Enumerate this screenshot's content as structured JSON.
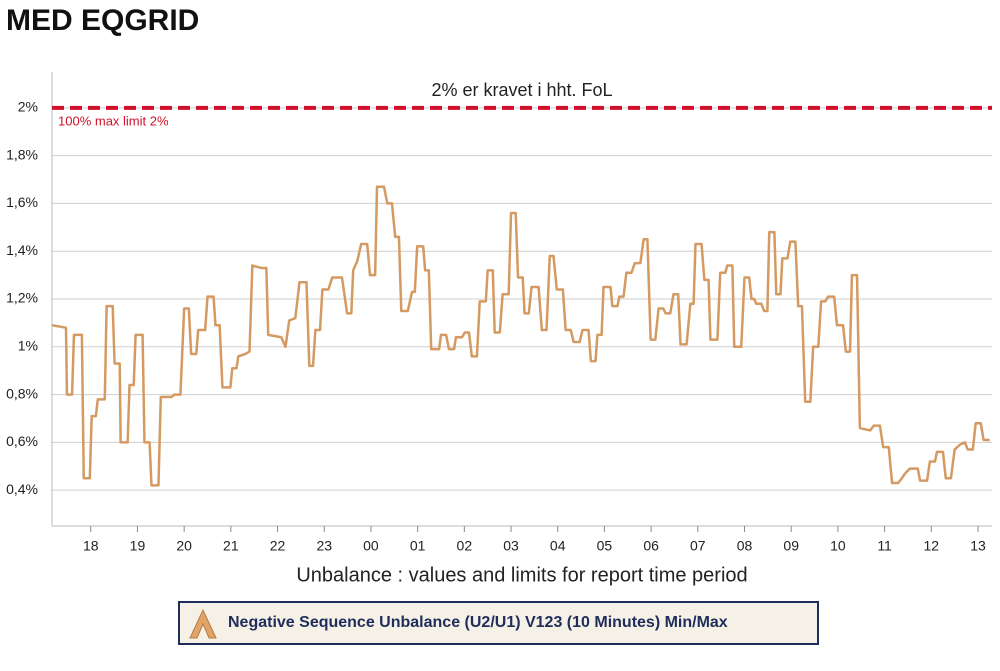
{
  "chart_data": {
    "type": "line",
    "title": "MED EQGRID",
    "x_label": "Unbalance : values and limits for report time period",
    "annotation": "2% er kravet i hht. FoL",
    "limit": {
      "value": 2,
      "label": "100% max limit 2%",
      "color": "#d0112b"
    },
    "grid": true,
    "xlim": [
      -0.83,
      19.3
    ],
    "ylim": [
      0.25,
      2.15
    ],
    "xticks": [
      {
        "value": 0,
        "label": "18"
      },
      {
        "value": 1,
        "label": "19"
      },
      {
        "value": 2,
        "label": "20"
      },
      {
        "value": 3,
        "label": "21"
      },
      {
        "value": 4,
        "label": "22"
      },
      {
        "value": 5,
        "label": "23"
      },
      {
        "value": 6,
        "label": "00"
      },
      {
        "value": 7,
        "label": "01"
      },
      {
        "value": 8,
        "label": "02"
      },
      {
        "value": 9,
        "label": "03"
      },
      {
        "value": 10,
        "label": "04"
      },
      {
        "value": 11,
        "label": "05"
      },
      {
        "value": 12,
        "label": "06"
      },
      {
        "value": 13,
        "label": "07"
      },
      {
        "value": 14,
        "label": "08"
      },
      {
        "value": 15,
        "label": "09"
      },
      {
        "value": 16,
        "label": "10"
      },
      {
        "value": 17,
        "label": "11"
      },
      {
        "value": 18,
        "label": "12"
      },
      {
        "value": 19,
        "label": "13"
      }
    ],
    "yticks": [
      {
        "value": 0.4,
        "label": "0,4%"
      },
      {
        "value": 0.6,
        "label": "0,6%"
      },
      {
        "value": 0.8,
        "label": "0,8%"
      },
      {
        "value": 1,
        "label": "1%"
      },
      {
        "value": 1.2,
        "label": "1,2%"
      },
      {
        "value": 1.4,
        "label": "1,4%"
      },
      {
        "value": 1.6,
        "label": "1,6%"
      },
      {
        "value": 1.8,
        "label": "1,8%"
      },
      {
        "value": 2,
        "label": "2%"
      }
    ],
    "x": [
      -0.83,
      -0.53,
      -0.51,
      -0.4,
      -0.36,
      -0.19,
      -0.15,
      -0.02,
      0.02,
      0.11,
      0.15,
      0.3,
      0.34,
      0.47,
      0.51,
      0.62,
      0.64,
      0.79,
      0.83,
      0.92,
      0.96,
      1.11,
      1.15,
      1.26,
      1.3,
      1.45,
      1.5,
      1.73,
      1.79,
      1.92,
      2.0,
      2.1,
      2.15,
      2.26,
      2.3,
      2.45,
      2.5,
      2.63,
      2.67,
      2.76,
      2.82,
      2.99,
      3.03,
      3.12,
      3.16,
      3.31,
      3.4,
      3.46,
      3.65,
      3.76,
      3.8,
      4.08,
      4.17,
      4.25,
      4.38,
      4.47,
      4.62,
      4.68,
      4.76,
      4.81,
      4.91,
      4.96,
      5.09,
      5.17,
      5.38,
      5.49,
      5.58,
      5.62,
      5.71,
      5.79,
      5.92,
      5.98,
      6.09,
      6.13,
      6.28,
      6.35,
      6.45,
      6.52,
      6.6,
      6.65,
      6.79,
      6.88,
      6.94,
      6.99,
      7.12,
      7.16,
      7.24,
      7.29,
      7.46,
      7.5,
      7.61,
      7.67,
      7.78,
      7.82,
      7.95,
      8.01,
      8.1,
      8.16,
      8.27,
      8.33,
      8.46,
      8.5,
      8.61,
      8.65,
      8.76,
      8.82,
      8.95,
      9.0,
      9.1,
      9.15,
      9.25,
      9.29,
      9.38,
      9.44,
      9.59,
      9.66,
      9.76,
      9.83,
      9.91,
      9.98,
      10.11,
      10.17,
      10.28,
      10.34,
      10.47,
      10.53,
      10.66,
      10.71,
      10.81,
      10.85,
      10.94,
      10.98,
      11.13,
      11.17,
      11.28,
      11.32,
      11.41,
      11.47,
      11.58,
      11.65,
      11.77,
      11.84,
      11.92,
      11.99,
      12.09,
      12.16,
      12.26,
      12.31,
      12.41,
      12.48,
      12.58,
      12.63,
      12.76,
      12.84,
      12.91,
      12.95,
      13.08,
      13.14,
      13.23,
      13.27,
      13.42,
      13.48,
      13.59,
      13.63,
      13.74,
      13.78,
      13.93,
      14.0,
      14.1,
      14.15,
      14.21,
      14.25,
      14.36,
      14.42,
      14.49,
      14.53,
      14.64,
      14.68,
      14.77,
      14.81,
      14.92,
      14.98,
      15.09,
      15.15,
      15.23,
      15.3,
      15.41,
      15.47,
      15.58,
      15.64,
      15.73,
      15.79,
      15.92,
      15.98,
      16.11,
      16.17,
      16.26,
      16.3,
      16.41,
      16.47,
      16.69,
      16.77,
      16.9,
      16.97,
      17.09,
      17.16,
      17.29,
      17.37,
      17.44,
      17.54,
      17.71,
      17.76,
      17.91,
      17.97,
      18.08,
      18.12,
      18.25,
      18.31,
      18.42,
      18.5,
      18.61,
      18.72,
      18.78,
      18.89,
      18.95,
      19.06,
      19.12,
      19.25
    ],
    "series": [
      {
        "name": "Negative Sequence Unbalance (U2/U1) V123 (10 Minutes) Min/Max",
        "color": "#d49a62",
        "values": [
          1.09,
          1.08,
          0.8,
          0.8,
          1.05,
          1.05,
          0.45,
          0.45,
          0.71,
          0.71,
          0.78,
          0.78,
          1.17,
          1.17,
          0.93,
          0.93,
          0.6,
          0.6,
          0.84,
          0.84,
          1.05,
          1.05,
          0.6,
          0.6,
          0.42,
          0.42,
          0.79,
          0.79,
          0.8,
          0.8,
          1.16,
          1.16,
          0.97,
          0.97,
          1.07,
          1.07,
          1.21,
          1.21,
          1.09,
          1.09,
          0.83,
          0.83,
          0.91,
          0.91,
          0.96,
          0.97,
          0.98,
          1.34,
          1.33,
          1.33,
          1.05,
          1.04,
          1.0,
          1.11,
          1.12,
          1.27,
          1.27,
          0.92,
          0.92,
          1.07,
          1.07,
          1.24,
          1.24,
          1.29,
          1.29,
          1.14,
          1.14,
          1.32,
          1.36,
          1.43,
          1.43,
          1.3,
          1.3,
          1.67,
          1.67,
          1.6,
          1.6,
          1.46,
          1.46,
          1.15,
          1.15,
          1.23,
          1.23,
          1.42,
          1.42,
          1.32,
          1.32,
          0.99,
          0.99,
          1.05,
          1.05,
          0.99,
          0.99,
          1.04,
          1.04,
          1.06,
          1.06,
          0.96,
          0.96,
          1.19,
          1.19,
          1.32,
          1.32,
          1.06,
          1.06,
          1.22,
          1.22,
          1.56,
          1.56,
          1.29,
          1.29,
          1.14,
          1.14,
          1.25,
          1.25,
          1.07,
          1.07,
          1.38,
          1.38,
          1.24,
          1.24,
          1.07,
          1.07,
          1.02,
          1.02,
          1.07,
          1.07,
          0.94,
          0.94,
          1.05,
          1.05,
          1.25,
          1.25,
          1.17,
          1.17,
          1.21,
          1.21,
          1.31,
          1.31,
          1.35,
          1.35,
          1.45,
          1.45,
          1.03,
          1.03,
          1.16,
          1.16,
          1.14,
          1.14,
          1.22,
          1.22,
          1.01,
          1.01,
          1.18,
          1.18,
          1.43,
          1.43,
          1.28,
          1.28,
          1.03,
          1.03,
          1.31,
          1.31,
          1.34,
          1.34,
          1.0,
          1.0,
          1.29,
          1.29,
          1.2,
          1.2,
          1.18,
          1.18,
          1.15,
          1.15,
          1.48,
          1.48,
          1.22,
          1.22,
          1.37,
          1.37,
          1.44,
          1.44,
          1.17,
          1.17,
          0.77,
          0.77,
          1.0,
          1.0,
          1.19,
          1.19,
          1.21,
          1.21,
          1.09,
          1.09,
          0.98,
          0.98,
          1.3,
          1.3,
          0.66,
          0.65,
          0.67,
          0.67,
          0.58,
          0.58,
          0.43,
          0.43,
          0.45,
          0.47,
          0.49,
          0.49,
          0.44,
          0.44,
          0.52,
          0.52,
          0.56,
          0.56,
          0.45,
          0.45,
          0.57,
          0.59,
          0.6,
          0.57,
          0.57,
          0.68,
          0.68,
          0.61,
          0.61
        ]
      }
    ]
  }
}
